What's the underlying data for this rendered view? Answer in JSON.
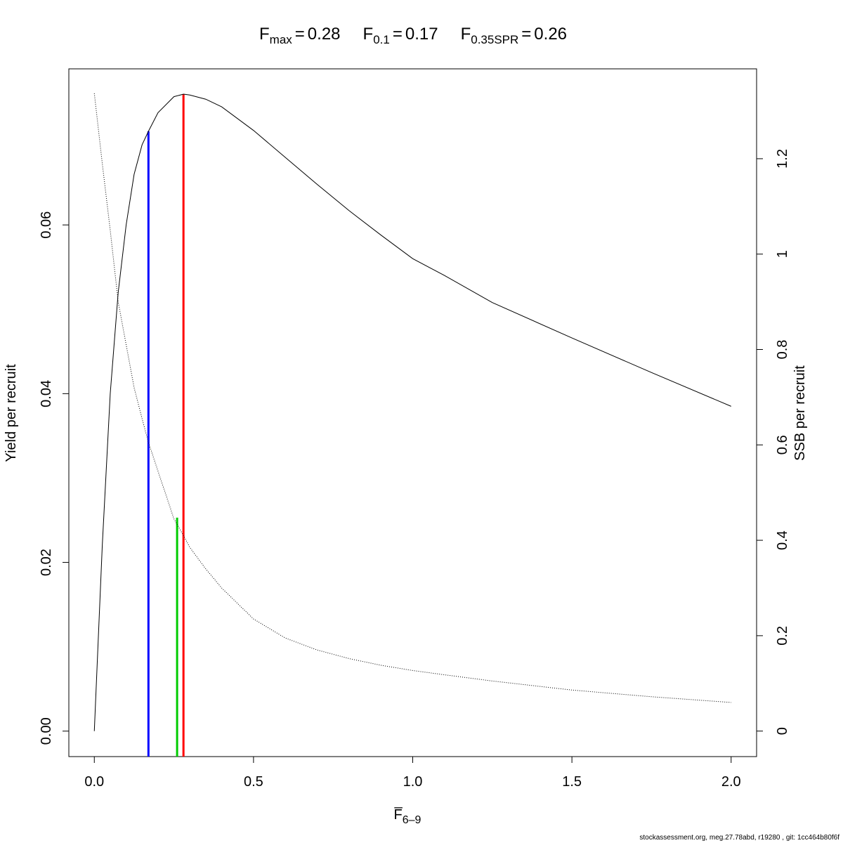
{
  "chart_data": {
    "type": "line",
    "title_items": [
      {
        "symbol": "F",
        "subscript": "max",
        "sign": "=",
        "value": 0.28
      },
      {
        "symbol": "F",
        "subscript": "0.1",
        "sign": "=",
        "value": 0.17
      },
      {
        "symbol": "F",
        "subscript": "0.35SPR",
        "sign": "=",
        "value": 0.26
      }
    ],
    "xlabel": {
      "symbol": "F̅",
      "subscript": "6–9"
    },
    "ylabel": "Yield per recruit",
    "y2label": "SSB per recruit",
    "footer": "stockassessment.org, meg.27.78abd, r19280 , git: 1cc464b80f6f",
    "x": [
      0,
      0.025,
      0.05,
      0.075,
      0.1,
      0.125,
      0.15,
      0.17,
      0.2,
      0.25,
      0.28,
      0.3,
      0.35,
      0.4,
      0.5,
      0.6,
      0.7,
      0.8,
      0.9,
      1.0,
      1.1,
      1.25,
      1.5,
      1.75,
      2.0
    ],
    "series": [
      {
        "name": "Yield per recruit",
        "color": "#000000",
        "dash": "solid",
        "values": [
          0,
          0.022,
          0.04,
          0.052,
          0.06,
          0.066,
          0.0695,
          0.0711,
          0.0733,
          0.0752,
          0.0755,
          0.0754,
          0.0749,
          0.074,
          0.0712,
          0.068,
          0.0648,
          0.0617,
          0.0588,
          0.056,
          0.054,
          0.0508,
          0.0466,
          0.0425,
          0.0385
        ]
      },
      {
        "name": "SSB per recruit",
        "color": "#000000",
        "dash": "dotted",
        "axis": "y2",
        "values": [
          1.337,
          1.19,
          1.05,
          0.9,
          0.81,
          0.72,
          0.655,
          0.605,
          0.545,
          0.445,
          0.41,
          0.385,
          0.34,
          0.3,
          0.235,
          0.195,
          0.17,
          0.152,
          0.138,
          0.127,
          0.118,
          0.105,
          0.086,
          0.072,
          0.06
        ]
      }
    ],
    "reference_lines": [
      {
        "x": 0.17,
        "y": 0.0711,
        "color": "#0000ff"
      },
      {
        "x": 0.26,
        "y": 0.0253,
        "color": "#00cc00"
      },
      {
        "x": 0.28,
        "y": 0.0755,
        "color": "#ff0000"
      }
    ],
    "xlim": [
      -0.08,
      2.08
    ],
    "xticks": [
      {
        "value": 0,
        "label": "0.0"
      },
      0.5,
      {
        "value": 1,
        "label": "1.0"
      },
      1.5,
      {
        "value": 2,
        "label": "2.0"
      }
    ],
    "ylim": [
      -0.00302,
      0.0785
    ],
    "yticks": [
      {
        "value": 0,
        "label": "0.00"
      },
      {
        "value": 0.02,
        "label": "0.02"
      },
      {
        "value": 0.04,
        "label": "0.04"
      },
      {
        "value": 0.06,
        "label": "0.06"
      }
    ],
    "y2lim": [
      -0.0535,
      1.3884
    ],
    "y2ticks": [
      0,
      0.2,
      0.4,
      0.6,
      0.8,
      1,
      1.2
    ]
  }
}
